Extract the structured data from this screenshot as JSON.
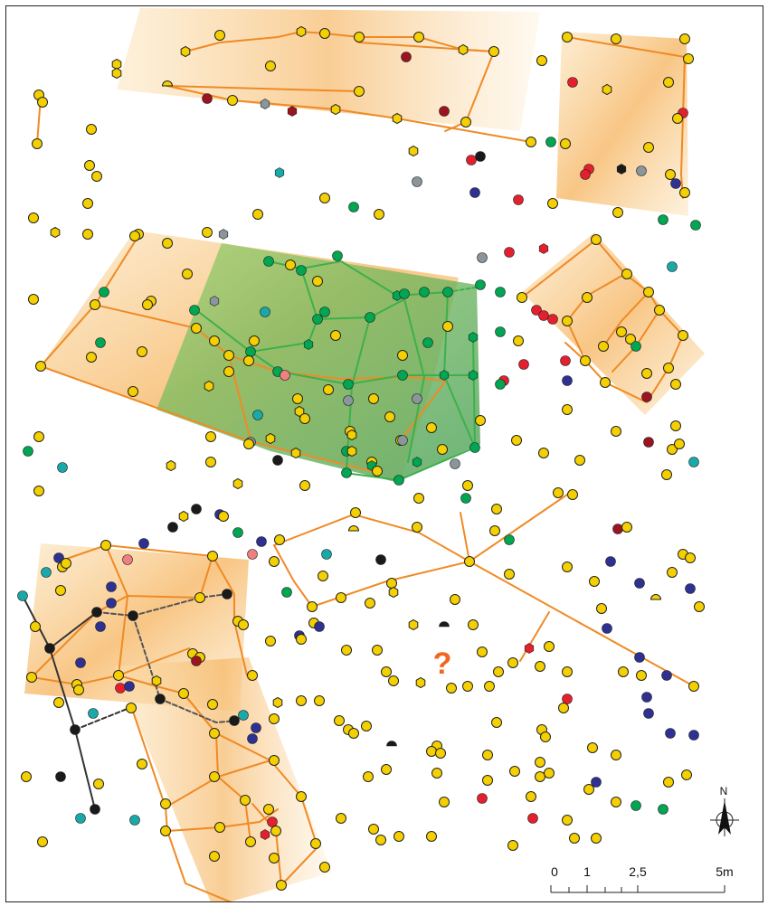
{
  "map": {
    "unknown_marker": "?",
    "north_label": "N",
    "scale_labels": [
      "0",
      "1",
      "2,5",
      "5m"
    ],
    "colors": {
      "posthole_yellow": "#f5d000",
      "posthole_green": "#00a651",
      "posthole_red": "#e4202e",
      "posthole_darkred": "#9b1420",
      "posthole_blue": "#2e3192",
      "posthole_teal": "#1aa9a9",
      "posthole_grey": "#8a969b",
      "posthole_black": "#1a1a1a",
      "posthole_pink": "#f08080",
      "structure_line_orange": "#f08a24",
      "structure_line_green": "#3db04b",
      "building_fill_orange": "#f6b35c",
      "building_fill_green": "#6ab04c",
      "unknown_marker_color": "#f26522"
    }
  }
}
